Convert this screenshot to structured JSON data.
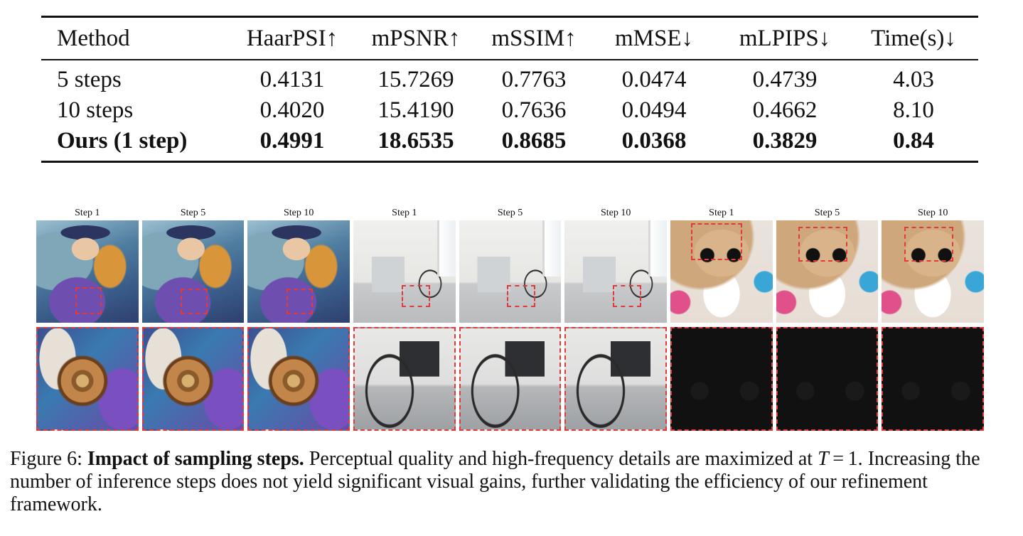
{
  "table": {
    "headers": [
      "Method",
      "HaarPSI↑",
      "mPSNR↑",
      "mSSIM↑",
      "mMSE↓",
      "mLPIPS↓",
      "Time(s)↓"
    ],
    "rows": [
      [
        "5 steps",
        "0.4131",
        "15.7269",
        "0.7763",
        "0.0474",
        "0.4739",
        "4.03"
      ],
      [
        "10 steps",
        "0.4020",
        "15.4190",
        "0.7636",
        "0.0494",
        "0.4662",
        "8.10"
      ],
      [
        "Ours (1 step)",
        "0.4991",
        "18.6535",
        "0.8685",
        "0.0368",
        "0.3829",
        "0.84"
      ]
    ],
    "bold_row": 2
  },
  "figure": {
    "step_labels": [
      "Step 1",
      "Step 5",
      "Step 10",
      "Step 1",
      "Step 5",
      "Step 10",
      "Step 1",
      "Step 5",
      "Step 10"
    ],
    "groups": [
      {
        "subject": "steampunk-painting"
      },
      {
        "subject": "hospital-wheelchair"
      },
      {
        "subject": "teddy-bear-birthday"
      }
    ]
  },
  "caption": {
    "prefix": "Figure 6: ",
    "title": "Impact of sampling steps.",
    "text_a": " Perceptual quality and high-frequency details are maximized at ",
    "math_var": "T",
    "math_rest": " = 1.",
    "text_b": "Increasing the number of inference steps does not yield significant visual gains, further validating the efficiency of our refinement framework."
  }
}
